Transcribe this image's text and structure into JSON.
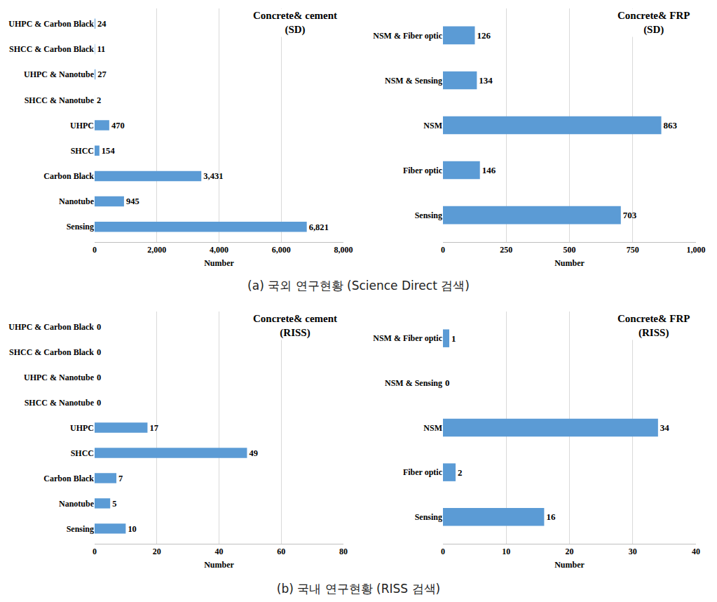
{
  "captions": [
    "(a) 국외 연구현황 (Science Direct 검색)",
    "(b) 국내 연구현황 (RISS 검색)"
  ],
  "chart_data": [
    {
      "type": "bar",
      "orientation": "horizontal",
      "title": "Concrete& cement\n(SD)",
      "xlabel": "Number",
      "categories": [
        "Sensing",
        "Nanotube",
        "Carbon Black",
        "SHCC",
        "UHPC",
        "SHCC & Nanotube",
        "UHPC & Nanotube",
        "SHCC & Carbon Black",
        "UHPC & Carbon Black"
      ],
      "values": [
        6821,
        945,
        3431,
        154,
        470,
        2,
        27,
        11,
        24
      ],
      "value_labels": [
        "6,821",
        "945",
        "3,431",
        "154",
        "470",
        "2",
        "27",
        "11",
        "24"
      ],
      "color": "#5b9bd5",
      "xlim": [
        0,
        8000
      ],
      "xticks": [
        0,
        {
          "value": 2000,
          "label": "2,000"
        },
        {
          "value": 4000,
          "label": "4,000"
        },
        {
          "value": 6000,
          "label": "6,000"
        },
        {
          "value": 8000,
          "label": "8,000"
        }
      ],
      "grid": true,
      "data_labels": true
    },
    {
      "type": "bar",
      "orientation": "horizontal",
      "title": "Concrete& FRP\n(SD)",
      "xlabel": "Number",
      "categories": [
        "Sensing",
        "Fiber optic",
        "NSM",
        "NSM & Sensing",
        "NSM & Fiber optic"
      ],
      "values": [
        703,
        146,
        863,
        134,
        126
      ],
      "color": "#5b9bd5",
      "xlim": [
        0,
        1000
      ],
      "xticks": [
        0,
        250,
        500,
        750,
        {
          "value": 1000,
          "label": "1,000"
        }
      ],
      "grid": true,
      "data_labels": true
    },
    {
      "type": "bar",
      "orientation": "horizontal",
      "title": "Concrete& cement\n(RISS)",
      "xlabel": "Number",
      "categories": [
        "Sensing",
        "Nanotube",
        "Carbon Black",
        "SHCC",
        "UHPC",
        "SHCC & Nanotube",
        "UHPC & Nanotube",
        "SHCC & Carbon Black",
        "UHPC & Carbon Black"
      ],
      "values": [
        10,
        5,
        7,
        49,
        17,
        0,
        0,
        0,
        0
      ],
      "color": "#5b9bd5",
      "xlim": [
        0,
        80
      ],
      "xticks": [
        0,
        20,
        40,
        60,
        80
      ],
      "grid": true,
      "data_labels": true
    },
    {
      "type": "bar",
      "orientation": "horizontal",
      "title": "Concrete& FRP\n(RISS)",
      "xlabel": "Number",
      "categories": [
        "Sensing",
        "Fiber optic",
        "NSM",
        "NSM & Sensing",
        "NSM & Fiber optic"
      ],
      "values": [
        16,
        2,
        34,
        0,
        1
      ],
      "color": "#5b9bd5",
      "xlim": [
        0,
        40
      ],
      "xticks": [
        0,
        10,
        20,
        30,
        40
      ],
      "grid": true,
      "data_labels": true
    }
  ]
}
